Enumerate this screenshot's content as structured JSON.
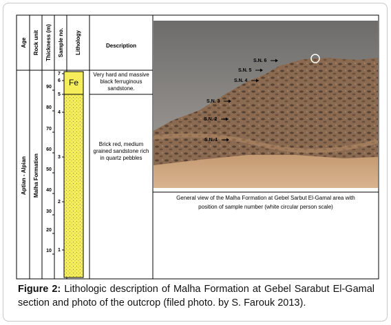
{
  "figure": {
    "headers": {
      "age": "Age",
      "rock_unit": "Rock unit",
      "thickness": "Thickness (m)",
      "sample_no": "Sample no.",
      "lithology": "Lithology",
      "description": "Description"
    },
    "age": "Aptian - Alpian",
    "rock_unit": "Malha Formation",
    "thickness_ticks": [
      "10",
      "20",
      "30",
      "40",
      "50",
      "60",
      "70",
      "80",
      "90"
    ],
    "sample_ticks": [
      "1",
      "2",
      "3",
      "4",
      "5",
      "6",
      "7"
    ],
    "lithology_label": "Fe",
    "descriptions": [
      [
        "Very hard and massive",
        "black ferruginous",
        "sandstone."
      ],
      [
        "Brick red, medium",
        "grained sandstone rich",
        "in quartz pebbles"
      ]
    ],
    "photo": {
      "labels": [
        "S.N. 6",
        "S.N. 5",
        "S.N. 4",
        "S.N. 3",
        "S.N. 2",
        "S.N. 1"
      ],
      "caption": [
        "General view of the Malha Formation at Gebel  Sarbut El-Gamal area with",
        "position of sample number (white circular person scale)"
      ]
    }
  },
  "caption": {
    "label": "Figure 2:",
    "text": "Lithologic description of Malha Formation at Gebel Sarabut El-Gamal section and photo of the outcrop (filed photo. by S. Farouk 2013)."
  }
}
